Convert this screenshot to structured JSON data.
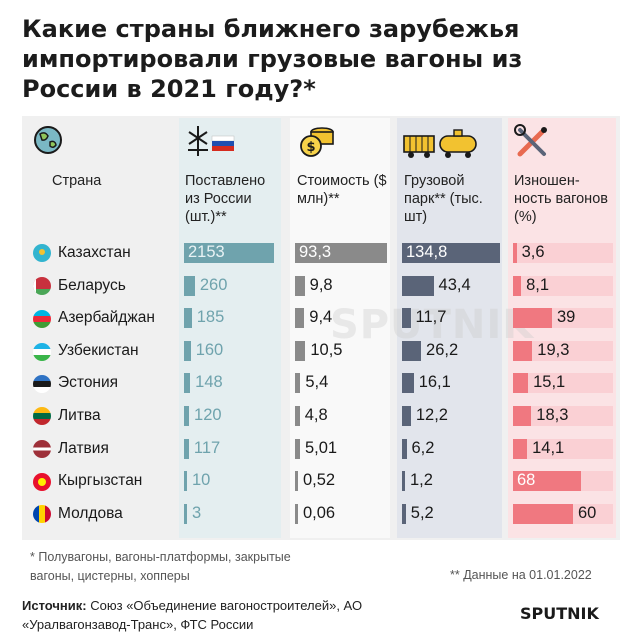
{
  "title": "Какие страны ближнего зарубежья импортировали грузовые вагоны из России в 2021 году?*",
  "columns": {
    "country": "Страна",
    "supplied": "Поставлено из России (шт.)**",
    "cost": "Стоимость ($ млн)**",
    "fleet": "Грузовой парк** (тыс. шт)",
    "wear": "Изношен- ность вагонов (%)"
  },
  "colors": {
    "supplied": "#6fa3ad",
    "cost": "#8a8a8a",
    "fleet": "#5a6478",
    "wear": "#f07880",
    "wear_bg": "#fbdfe1",
    "supplied_bg": "#e6eff1",
    "fleet_bg": "#e6e8ee"
  },
  "chart_data": {
    "type": "table",
    "countries": [
      "Казахстан",
      "Беларусь",
      "Азербайджан",
      "Узбекистан",
      "Эстония",
      "Литва",
      "Латвия",
      "Кыргызстан",
      "Молдова"
    ],
    "supplied": [
      2153,
      260,
      185,
      160,
      148,
      120,
      117,
      10,
      3
    ],
    "cost": [
      93.3,
      9.8,
      9.4,
      10.5,
      5.4,
      4.8,
      5.01,
      0.52,
      0.06
    ],
    "fleet": [
      134.8,
      43.4,
      11.7,
      26.2,
      16.1,
      12.2,
      6.2,
      1.2,
      5.2
    ],
    "wear": [
      3.6,
      8.1,
      39,
      19.3,
      15.1,
      18.3,
      14.1,
      68,
      60
    ],
    "labels": {
      "supplied": [
        "2153",
        "260",
        "185",
        "160",
        "148",
        "120",
        "117",
        "10",
        "3"
      ],
      "cost": [
        "93,3",
        "9,8",
        "9,4",
        "10,5",
        "5,4",
        "4,8",
        "5,01",
        "0,52",
        "0,06"
      ],
      "fleet": [
        "134,8",
        "43,4",
        "11,7",
        "26,2",
        "16,1",
        "12,2",
        "6,2",
        "1,2",
        "5,2"
      ],
      "wear": [
        "3,6",
        "8,1",
        "39",
        "19,3",
        "15,1",
        "18,3",
        "14,1",
        "68",
        "60"
      ]
    }
  },
  "footnote1": "* Полувагоны, вагоны-платформы, закрытые вагоны, цистерны, хопперы",
  "footnote2": "** Данные на 01.01.2022",
  "source_label": "Источник:",
  "source_text": "Союз «Объединение вагоностроителей», АО «Уралвагонзавод-Транс», ФТС России",
  "logo": "SPUTNIK",
  "watermark": "SPUTNIK"
}
